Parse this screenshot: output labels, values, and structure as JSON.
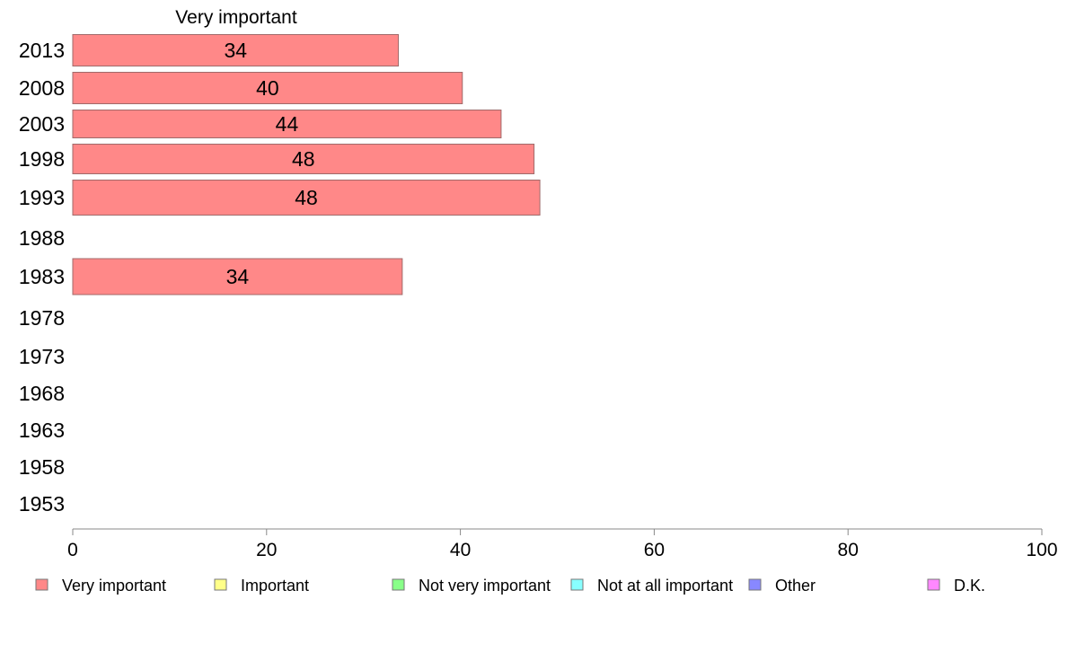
{
  "chart_data": {
    "type": "bar",
    "orientation": "horizontal",
    "title": "",
    "column_title": "Very important",
    "xlabel": "",
    "ylabel": "",
    "xlim": [
      0,
      100
    ],
    "x_ticks": [
      0,
      20,
      40,
      60,
      80,
      100
    ],
    "grid": false,
    "legend_position": "bottom",
    "categories": [
      "2013",
      "2008",
      "2003",
      "1998",
      "1993",
      "1988",
      "1983",
      "1978",
      "1973",
      "1968",
      "1963",
      "1958",
      "1953"
    ],
    "series": [
      {
        "name": "Very important",
        "color": "#ff8888",
        "values": [
          33.6,
          40.2,
          44.2,
          47.6,
          48.2,
          null,
          34.0,
          null,
          null,
          null,
          null,
          null,
          null
        ],
        "labels": [
          "34",
          "40",
          "44",
          "48",
          "48",
          "",
          "34",
          "",
          "",
          "",
          "",
          "",
          ""
        ]
      }
    ],
    "legend": [
      {
        "name": "Very important",
        "color": "#ff8888"
      },
      {
        "name": "Important",
        "color": "#ffff88"
      },
      {
        "name": "Not very important",
        "color": "#88ff88"
      },
      {
        "name": "Not at all important",
        "color": "#88ffff"
      },
      {
        "name": "Other",
        "color": "#8888ff"
      },
      {
        "name": "D.K.",
        "color": "#ff88ff"
      }
    ]
  }
}
